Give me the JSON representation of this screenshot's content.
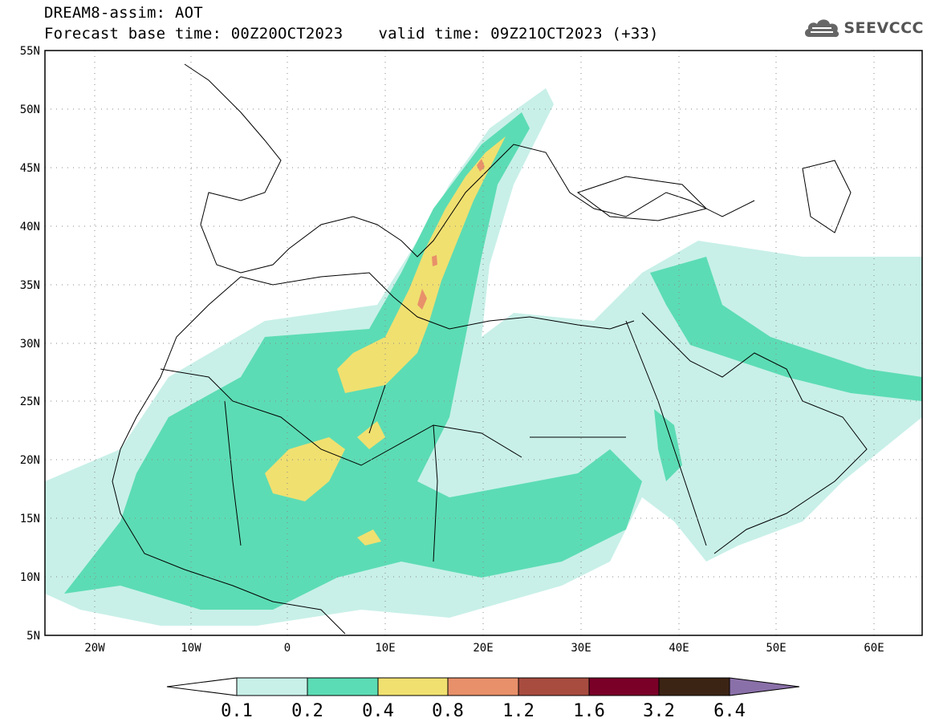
{
  "header": {
    "title": "DREAM8-assim: AOT",
    "base_time_label": "Forecast base time: 00Z20OCT2023",
    "valid_time_label": "valid time: 09Z21OCT2023 (+33)"
  },
  "logo": {
    "text": "SEEVCCC",
    "icon": "cloud-icon"
  },
  "map": {
    "lon_range": [
      -25,
      65
    ],
    "lat_range": [
      5,
      55
    ],
    "lat_ticks": [
      "5N",
      "10N",
      "15N",
      "20N",
      "25N",
      "30N",
      "35N",
      "40N",
      "45N",
      "50N",
      "55N"
    ],
    "lon_ticks": [
      "20W",
      "10W",
      "0",
      "10E",
      "20E",
      "30E",
      "40E",
      "50E",
      "60E"
    ],
    "grid": "dotted"
  },
  "legend": {
    "labels": [
      "0.1",
      "0.2",
      "0.4",
      "0.8",
      "1.2",
      "1.6",
      "3.2",
      "6.4"
    ],
    "colors": [
      "#c8f0e8",
      "#5cdcb4",
      "#f0e070",
      "#e8906a",
      "#a84c40",
      "#7a0028",
      "#3c2414",
      "#8a70a8"
    ]
  },
  "colors": {
    "aot_0_1": "#c8f0e8",
    "aot_0_2": "#5cdcb4",
    "aot_0_4": "#f0e070",
    "aot_0_8": "#e8906a",
    "aot_1_2": "#a84c40",
    "aot_1_6": "#7a0028",
    "aot_3_2": "#3c2414",
    "aot_6_4": "#8a70a8"
  }
}
